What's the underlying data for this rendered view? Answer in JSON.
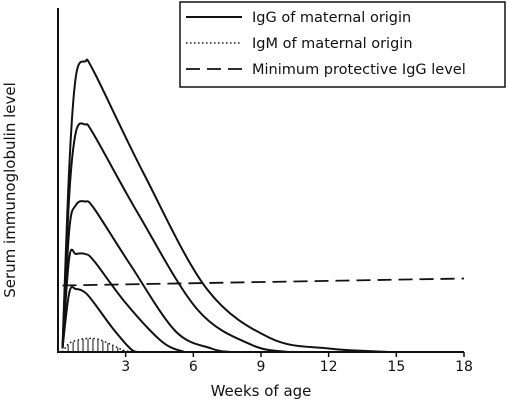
{
  "chart_data": {
    "type": "line",
    "title": "",
    "xlabel": "Weeks of age",
    "ylabel": "Serum immunoglobulin level",
    "xlim": [
      0,
      18
    ],
    "ylim": [
      0,
      100
    ],
    "xticks": [
      3,
      6,
      9,
      12,
      15,
      18
    ],
    "xtick_labels": [
      "3",
      "6",
      "9",
      "12",
      "15",
      "18"
    ],
    "y_tick_labels_shown": false,
    "legend": {
      "position": "top-right",
      "entries": [
        {
          "label": "IgG of maternal origin",
          "style": "solid"
        },
        {
          "label": "IgM of maternal origin",
          "style": "dotted"
        },
        {
          "label": "Minimum protective IgG level",
          "style": "dashed"
        }
      ]
    },
    "series": [
      {
        "style": "solid",
        "points": [
          [
            0.2,
            1
          ],
          [
            0.5,
            53
          ],
          [
            0.8,
            79
          ],
          [
            1.2,
            83
          ],
          [
            1.6,
            80
          ],
          [
            3.8,
            51
          ],
          [
            6.6,
            18
          ],
          [
            9.4,
            4
          ],
          [
            12,
            1
          ],
          [
            14.7,
            0
          ]
        ]
      },
      {
        "style": "solid",
        "points": [
          [
            0.2,
            1
          ],
          [
            0.5,
            45
          ],
          [
            0.8,
            63
          ],
          [
            1.2,
            65
          ],
          [
            1.6,
            62
          ],
          [
            3.6,
            39
          ],
          [
            6.2,
            12
          ],
          [
            8.6,
            2
          ],
          [
            10.2,
            0
          ]
        ]
      },
      {
        "style": "solid",
        "points": [
          [
            0.2,
            1
          ],
          [
            0.5,
            35
          ],
          [
            0.8,
            42
          ],
          [
            1.2,
            43
          ],
          [
            1.6,
            41
          ],
          [
            3.2,
            25
          ],
          [
            5.2,
            6
          ],
          [
            6.8,
            1
          ],
          [
            7.6,
            0
          ]
        ]
      },
      {
        "style": "solid",
        "points": [
          [
            0.2,
            1
          ],
          [
            0.5,
            27
          ],
          [
            0.8,
            28
          ],
          [
            1.2,
            28
          ],
          [
            1.6,
            26
          ],
          [
            3.0,
            14
          ],
          [
            4.6,
            3
          ],
          [
            5.6,
            0
          ]
        ]
      },
      {
        "style": "solid",
        "points": [
          [
            0.2,
            1
          ],
          [
            0.5,
            17
          ],
          [
            0.8,
            18
          ],
          [
            1.2,
            17
          ],
          [
            1.6,
            14
          ],
          [
            2.4,
            7
          ],
          [
            3.2,
            1
          ],
          [
            3.5,
            0
          ]
        ]
      },
      {
        "style": "dotted",
        "points": [
          [
            0.2,
            0
          ],
          [
            0.5,
            2.5
          ],
          [
            1.0,
            3.6
          ],
          [
            1.4,
            3.9
          ],
          [
            1.8,
            3.6
          ],
          [
            2.4,
            2
          ],
          [
            2.9,
            0.5
          ],
          [
            3.3,
            0
          ]
        ]
      },
      {
        "style": "dashed",
        "points": [
          [
            0.2,
            19
          ],
          [
            18,
            21
          ]
        ]
      }
    ]
  }
}
